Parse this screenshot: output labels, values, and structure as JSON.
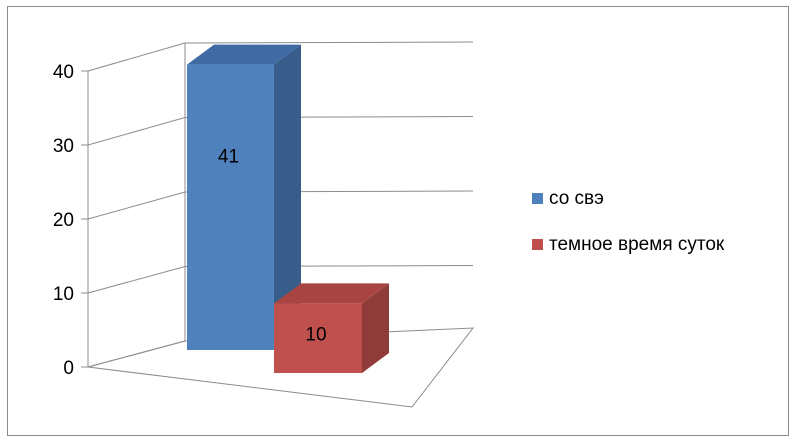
{
  "chart_data": {
    "type": "bar",
    "categories": [
      ""
    ],
    "series": [
      {
        "name": "со свэ",
        "values": [
          41
        ],
        "label": "41"
      },
      {
        "name": "темное время суток",
        "values": [
          10
        ],
        "label": "10"
      }
    ],
    "yticks": [
      "0",
      "10",
      "20",
      "30",
      "40"
    ],
    "ylim": [
      0,
      40
    ],
    "legend": "right",
    "grid": true,
    "three_d": true,
    "colors": {
      "series0_front": "#4f81bd",
      "series0_side": "#385d8a",
      "series0_top": "#3f6aa3",
      "series1_front": "#c0504d",
      "series1_side": "#8f3b39",
      "series1_top": "#a84543"
    }
  }
}
